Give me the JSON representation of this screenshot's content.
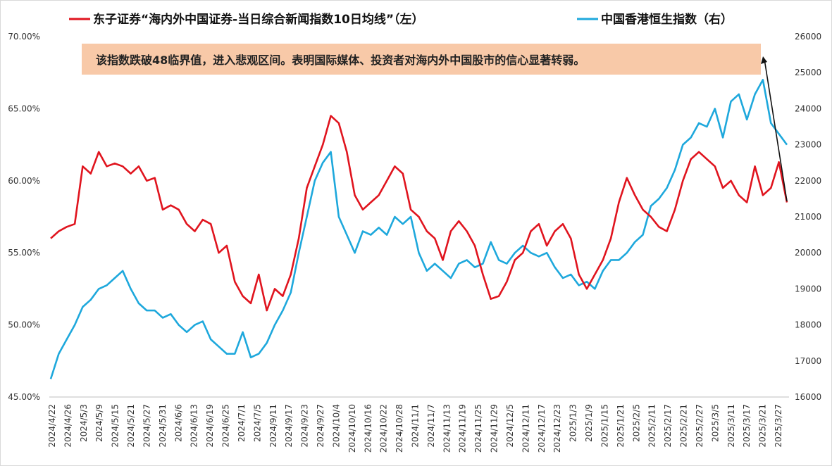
{
  "chart_data": {
    "type": "line",
    "legend": [
      "东子证券“海内外中国证券-当日综合新闻指数10日均线”（左）",
      "中国香港恒生指数（右）"
    ],
    "annotation": "该指数跌破48临界值，进入悲观区间。表明国际媒体、投资者对海内外中国股市的信心显著转弱。",
    "left_axis": {
      "ylim": [
        45,
        70
      ],
      "ticks": [
        "45.00%",
        "50.00%",
        "55.00%",
        "60.00%",
        "65.00%",
        "70.00%"
      ]
    },
    "right_axis": {
      "ylim": [
        16000,
        26000
      ],
      "ticks": [
        "16000",
        "17000",
        "18000",
        "19000",
        "20000",
        "21000",
        "22000",
        "23000",
        "24000",
        "25000",
        "26000"
      ]
    },
    "x_tick_labels": [
      "2024/4/22",
      "2024/4/26",
      "2024/5/3",
      "2024/5/9",
      "2024/5/15",
      "2024/5/21",
      "2024/5/27",
      "2024/5/31",
      "2024/6/6",
      "2024/6/13",
      "2024/6/19",
      "2024/6/25",
      "2024/7/1",
      "2024/7/5",
      "2024/9/11",
      "2024/9/17",
      "2024/9/23",
      "2024/9/27",
      "2024/10/4",
      "2024/10/10",
      "2024/10/16",
      "2024/10/22",
      "2024/10/28",
      "2024/11/1",
      "2024/11/7",
      "2024/11/13",
      "2024/11/19",
      "2024/11/25",
      "2024/11/29",
      "2024/12/5",
      "2024/12/11",
      "2024/12/17",
      "2024/12/23",
      "2025/1/3",
      "2025/1/9",
      "2025/1/15",
      "2025/1/21",
      "2025/2/5",
      "2025/2/11",
      "2025/2/17",
      "2025/2/21",
      "2025/2/27",
      "2025/3/5",
      "2025/3/11",
      "2025/3/17",
      "2025/3/21",
      "2025/3/27"
    ],
    "series": [
      {
        "name": "东子证券“海内外中国证券-当日综合新闻指数10日均线”（左）",
        "axis": "left",
        "color": "#e0141e",
        "values": [
          56.0,
          56.5,
          56.8,
          57.0,
          61.0,
          60.5,
          62.0,
          61.0,
          61.2,
          61.0,
          60.5,
          61.0,
          60.0,
          60.2,
          58.0,
          58.3,
          58.0,
          57.0,
          56.5,
          57.3,
          57.0,
          55.0,
          55.5,
          53.0,
          52.0,
          51.5,
          53.5,
          51.0,
          52.5,
          52.0,
          53.5,
          56.0,
          59.5,
          61.0,
          62.5,
          64.5,
          64.0,
          62.0,
          59.0,
          58.0,
          58.5,
          59.0,
          60.0,
          61.0,
          60.5,
          58.0,
          57.5,
          56.5,
          56.0,
          54.5,
          56.5,
          57.2,
          56.5,
          55.5,
          53.5,
          51.8,
          52.0,
          53.0,
          54.5,
          55.0,
          56.5,
          57.0,
          55.5,
          56.5,
          57.0,
          56.0,
          53.5,
          52.5,
          53.5,
          54.5,
          56.0,
          58.5,
          60.2,
          59.0,
          58.0,
          57.5,
          56.8,
          56.5,
          58.0,
          60.0,
          61.5,
          62.0,
          61.5,
          61.0,
          59.5,
          60.0,
          59.0,
          58.5,
          61.0,
          59.0,
          59.5,
          61.3,
          58.5
        ]
      },
      {
        "name": "中国香港恒生指数（右）",
        "axis": "right",
        "color": "#1ea8dc",
        "values": [
          16500,
          17200,
          17600,
          18000,
          18500,
          18700,
          19000,
          19100,
          19300,
          19500,
          19000,
          18600,
          18400,
          18400,
          18200,
          18300,
          18000,
          17800,
          18000,
          18100,
          17600,
          17400,
          17200,
          17200,
          17800,
          17100,
          17200,
          17500,
          18000,
          18400,
          18900,
          20000,
          21000,
          22000,
          22500,
          22800,
          21000,
          20500,
          20000,
          20600,
          20500,
          20700,
          20500,
          21000,
          20800,
          21000,
          20000,
          19500,
          19700,
          19500,
          19300,
          19700,
          19800,
          19600,
          19700,
          20300,
          19800,
          19700,
          20000,
          20200,
          20000,
          19900,
          20000,
          19600,
          19300,
          19400,
          19100,
          19200,
          19000,
          19500,
          19800,
          19800,
          20000,
          20300,
          20500,
          21300,
          21500,
          21800,
          22300,
          23000,
          23200,
          23600,
          23500,
          24000,
          23200,
          24200,
          24400,
          23700,
          24400,
          24800,
          23600,
          23300,
          23000
        ]
      }
    ]
  }
}
